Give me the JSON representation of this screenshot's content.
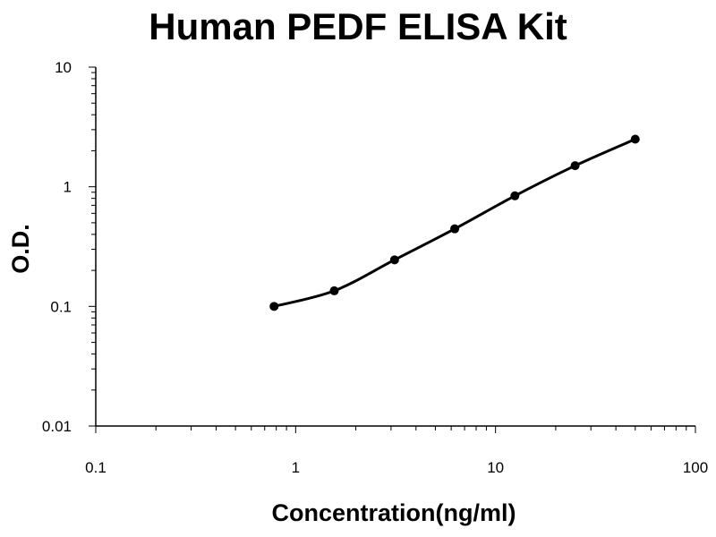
{
  "chart_data": {
    "type": "scatter",
    "title": "Human PEDF ELISA Kit",
    "xlabel": "Concentration(ng/ml)",
    "ylabel": "O.D.",
    "xscale": "log",
    "yscale": "log",
    "xlim": [
      0.1,
      100
    ],
    "ylim": [
      0.01,
      10
    ],
    "x_ticks": [
      0.1,
      1,
      10,
      100
    ],
    "x_tick_labels": [
      "0.1",
      "1",
      "10",
      "100"
    ],
    "y_ticks": [
      0.01,
      0.1,
      1,
      10
    ],
    "y_tick_labels": [
      "0.01",
      "0.1",
      "1",
      "10"
    ],
    "grid": false,
    "series": [
      {
        "x": [
          0.78,
          1.56,
          3.125,
          6.25,
          12.5,
          25,
          50
        ],
        "y": [
          0.1,
          0.135,
          0.245,
          0.445,
          0.84,
          1.5,
          2.5
        ],
        "marker": "circle",
        "line": "smooth",
        "color": "#000000"
      }
    ]
  }
}
